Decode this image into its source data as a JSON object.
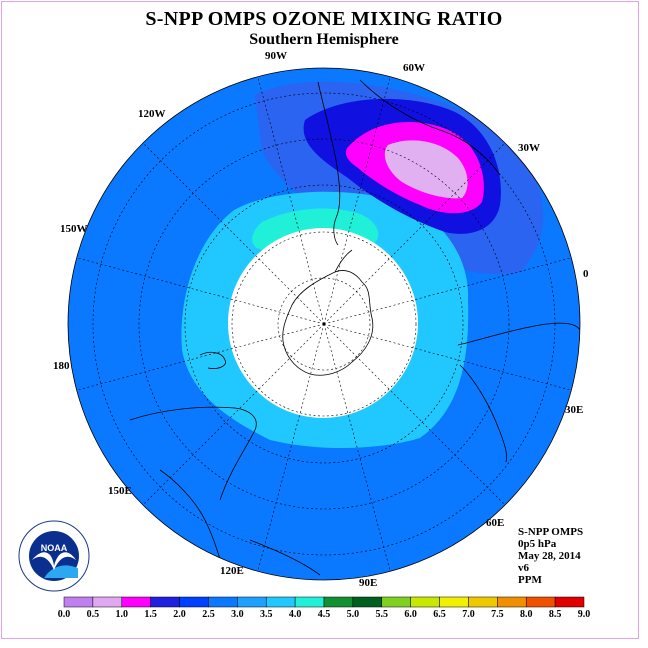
{
  "title": "S-NPP OMPS OZONE MIXING RATIO",
  "subtitle": "Southern Hemisphere",
  "lon_labels": [
    "90W",
    "60W",
    "30W",
    "0",
    "30E",
    "60E",
    "90E",
    "120E",
    "150E",
    "180",
    "150W",
    "120W"
  ],
  "info": {
    "instrument": "S-NPP OMPS",
    "level": "0p5 hPa",
    "date": "May 28, 2014",
    "version": "v6",
    "units": "PPM"
  },
  "colorbar": {
    "labels": [
      "0.0",
      "0.5",
      "1.0",
      "1.5",
      "2.0",
      "2.5",
      "3.0",
      "3.5",
      "4.0",
      "4.5",
      "5.0",
      "5.5",
      "6.0",
      "6.5",
      "7.0",
      "7.5",
      "8.0",
      "8.5",
      "9.0"
    ],
    "colors": [
      "#c080f0",
      "#e0a8f0",
      "#ff00ff",
      "#2020e0",
      "#0040ff",
      "#0a78ff",
      "#1ea0ff",
      "#20c8ff",
      "#20f0d8",
      "#109030",
      "#006020",
      "#80d020",
      "#c8e800",
      "#f0f000",
      "#f0c800",
      "#f09000",
      "#f05000",
      "#e00000",
      "#804020"
    ]
  },
  "logo": {
    "text": "NOAA",
    "ring_text": "NATIONAL OCEANIC AND ATMOSPHERIC ADMINISTRATION · U.S. DEPARTMENT OF COMMERCE"
  },
  "map_colors": {
    "background": "#0a78ff",
    "low_polar_ring": "#20c8ff",
    "mid_ring": "#1ea0ff",
    "teal_patch": "#20f0d8",
    "blue_band": "#2a64f0",
    "dark_blue": "#1010e0",
    "magenta": "#ff00ff",
    "lavender": "#e0b0f0",
    "polar_night": "#ffffff"
  }
}
